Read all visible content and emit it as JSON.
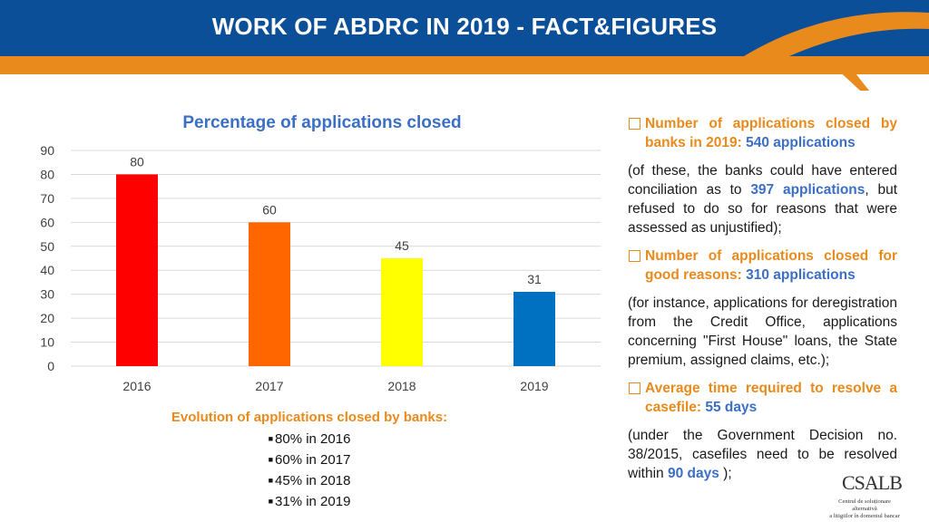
{
  "header": {
    "title": "WORK OF ABDRC IN 2019 - FACT&FIGURES",
    "colors": {
      "band": "#0B4F98",
      "swoosh": "#E98A1D"
    }
  },
  "chart_data": {
    "type": "bar",
    "title": "Percentage of applications closed",
    "categories": [
      "2016",
      "2017",
      "2018",
      "2019"
    ],
    "values": [
      80,
      60,
      45,
      31
    ],
    "data_labels": [
      "80",
      "60",
      "45",
      "31"
    ],
    "colors": [
      "#FF0000",
      "#FF6600",
      "#FFFF00",
      "#0070C0"
    ],
    "ylim": [
      0,
      90
    ],
    "yticks": [
      "0",
      "10",
      "20",
      "30",
      "40",
      "50",
      "60",
      "70",
      "80",
      "90"
    ],
    "grid": true,
    "xlabel": "",
    "ylabel": ""
  },
  "caption": {
    "title": "Evolution of applications closed by banks:",
    "items": [
      "80% in 2016",
      "60% in 2017",
      "45% in 2018",
      "31% in 2019"
    ]
  },
  "facts": {
    "b1_text": "Number of applications closed by banks in 2019:",
    "b1_value": "540 applications",
    "p1_a": "(of these, the banks could have entered conciliation as to",
    "p1_value": "397 applications",
    "p1_b": ", but refused to do so for reasons that were assessed as unjustified);",
    "b2_text": "Number of applications closed for good reasons:",
    "b2_value": "310 applications",
    "p2": "(for instance, applications for deregistration from the Credit Office, applications concerning \"First House\" loans, the State premium, assigned claims, etc.);",
    "b3_text": "Average time required to resolve a casefile:",
    "b3_value": "55 days",
    "p3_a": "(under the Government Decision no. 38/2015, casefiles need to be resolved within",
    "p3_value": "90 days",
    "p3_b": ");"
  },
  "logo": {
    "name": "CSALB",
    "subtitle_1": "Centrul de soluționare alternativă",
    "subtitle_2": "a litigiilor în domeniul bancar"
  }
}
